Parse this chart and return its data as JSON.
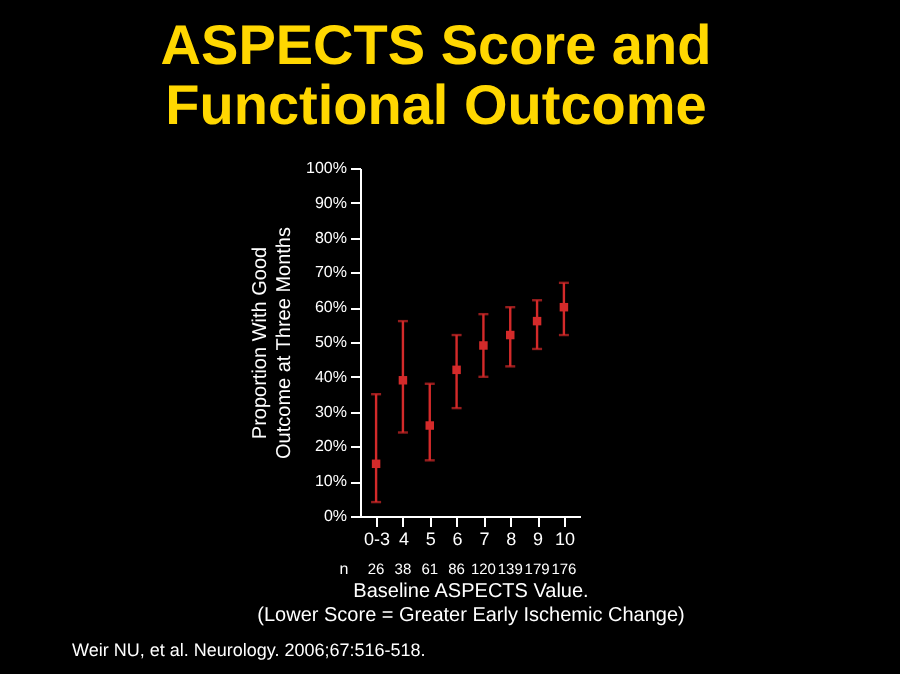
{
  "chart_data": {
    "type": "scatter",
    "title": "ASPECTS Score and\nFunctional Outcome",
    "xlabel": "Baseline ASPECTS Value.\n(Lower Score = Greater Early Ischemic Change)",
    "ylabel": "Proportion With Good\nOutcome at Three Months",
    "categories": [
      "0-3",
      "4",
      "5",
      "6",
      "7",
      "8",
      "9",
      "10"
    ],
    "series": [
      {
        "color": "#d42a2a",
        "values": [
          15,
          39,
          26,
          42,
          49,
          52,
          56,
          60
        ],
        "errors": [
          [
            4,
            35
          ],
          [
            24,
            56
          ],
          [
            16,
            38
          ],
          [
            31,
            52
          ],
          [
            40,
            58
          ],
          [
            43,
            60
          ],
          [
            48,
            62
          ],
          [
            52,
            67
          ]
        ]
      }
    ],
    "ylim": [
      0,
      100
    ],
    "yticks": [
      {
        "value": 0,
        "label": "0%"
      },
      {
        "value": 10,
        "label": "10%"
      },
      {
        "value": 20,
        "label": "20%"
      },
      {
        "value": 30,
        "label": "30%"
      },
      {
        "value": 40,
        "label": "40%"
      },
      {
        "value": 50,
        "label": "50%"
      },
      {
        "value": 60,
        "label": "60%"
      },
      {
        "value": 70,
        "label": "70%"
      },
      {
        "value": 80,
        "label": "80%"
      },
      {
        "value": 90,
        "label": "90%"
      },
      {
        "value": 100,
        "label": "100%"
      }
    ],
    "grid": false,
    "marker": "square",
    "annotations": [
      "n",
      "26",
      "38",
      "61",
      "86",
      "120",
      "139",
      "179",
      "176",
      "Weir NU, et al. Neurology. 2006;67:516-518."
    ]
  }
}
